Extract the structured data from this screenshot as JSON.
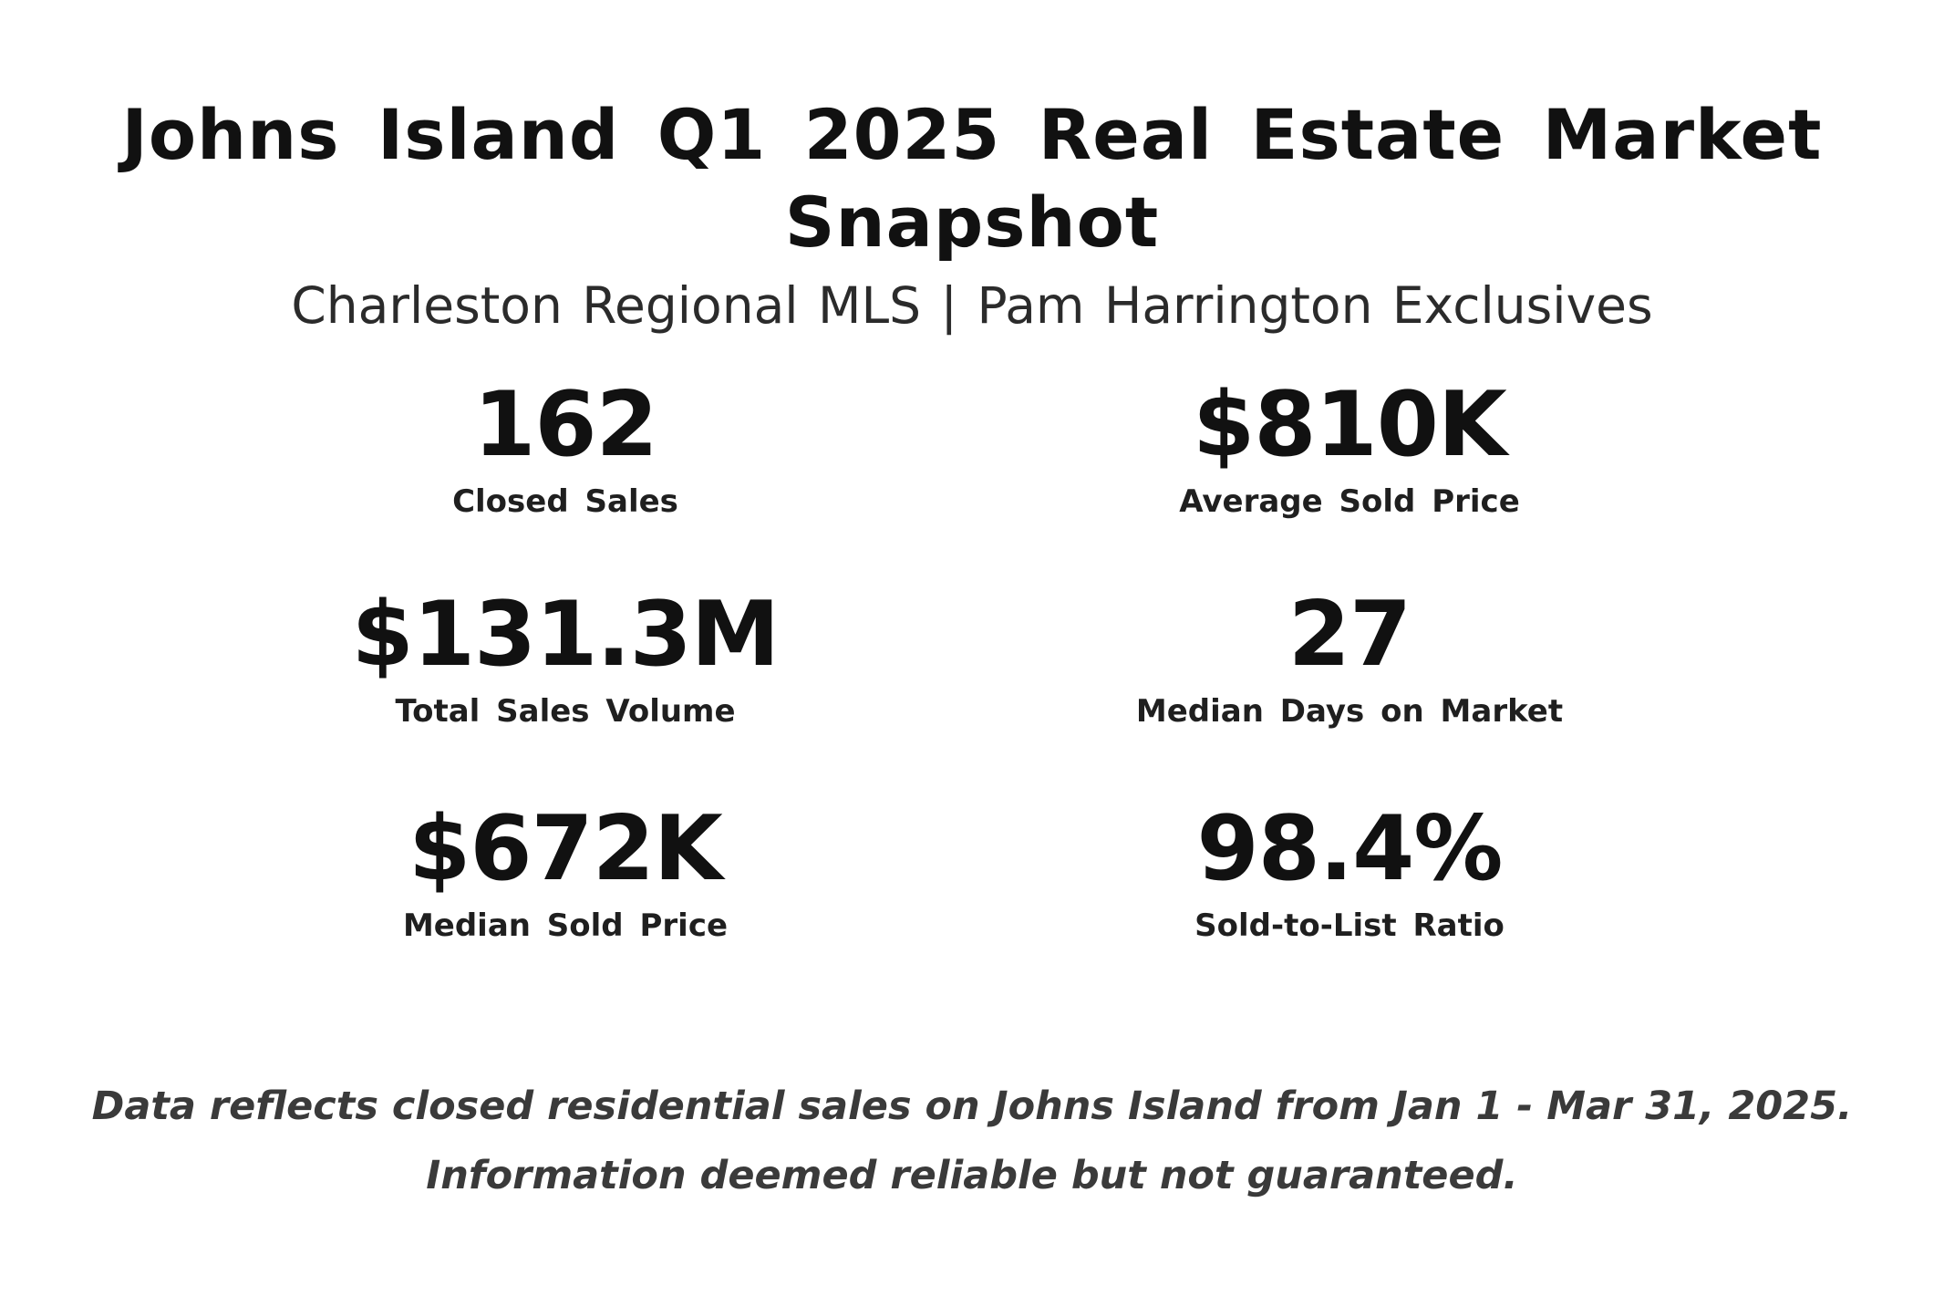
{
  "header": {
    "title": "Johns Island Q1 2025 Real Estate Market Snapshot",
    "subtitle": "Charleston Regional MLS | Pam Harrington Exclusives"
  },
  "metrics": [
    {
      "value": "162",
      "label": "Closed Sales"
    },
    {
      "value": "$810K",
      "label": "Average Sold Price"
    },
    {
      "value": "$131.3M",
      "label": "Total Sales Volume"
    },
    {
      "value": "27",
      "label": "Median Days on Market"
    },
    {
      "value": "$672K",
      "label": "Median Sold Price"
    },
    {
      "value": "98.4%",
      "label": "Sold-to-List Ratio"
    }
  ],
  "footnote": {
    "line1": "Data reflects closed residential sales on Johns Island from Jan 1 - Mar 31, 2025.",
    "line2": "Information deemed reliable but not guaranteed."
  }
}
